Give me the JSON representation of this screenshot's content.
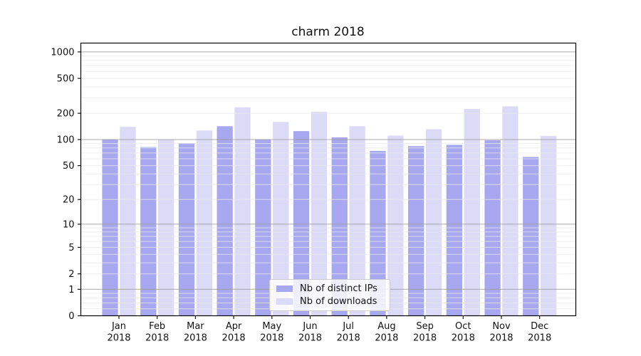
{
  "title": "charm 2018",
  "legend": {
    "items": [
      {
        "label": "Nb of distinct IPs",
        "color": "#a8a8f0"
      },
      {
        "label": "Nb of downloads",
        "color": "#dbdbf8"
      }
    ],
    "position": "lower center inside plot"
  },
  "chart_data": {
    "type": "bar",
    "title": "charm 2018",
    "categories": [
      "Jan 2018",
      "Feb 2018",
      "Mar 2018",
      "Apr 2018",
      "May 2018",
      "Jun 2018",
      "Jul 2018",
      "Aug 2018",
      "Sep 2018",
      "Oct 2018",
      "Nov 2018",
      "Dec 2018"
    ],
    "series": [
      {
        "name": "Nb of distinct IPs",
        "color": "#a8a8f0",
        "values": [
          100,
          82,
          91,
          142,
          100,
          125,
          106,
          74,
          84,
          87,
          98,
          63
        ]
      },
      {
        "name": "Nb of downloads",
        "color": "#dbdbf8",
        "values": [
          140,
          100,
          127,
          234,
          159,
          208,
          142,
          111,
          131,
          224,
          240,
          110
        ]
      }
    ],
    "xlabel": "",
    "ylabel": "",
    "yscale": "log-like (log10 of 1+value)",
    "y_tick_values": [
      0,
      1,
      2,
      5,
      10,
      20,
      50,
      100,
      200,
      500,
      1000
    ],
    "ylim": [
      0,
      1240
    ],
    "grid": {
      "on": true,
      "major": [
        1,
        10,
        100,
        1000
      ],
      "major_color": "#9a9a9a",
      "minor_color": "#e8e8e8"
    },
    "legend_position": "lower center"
  }
}
